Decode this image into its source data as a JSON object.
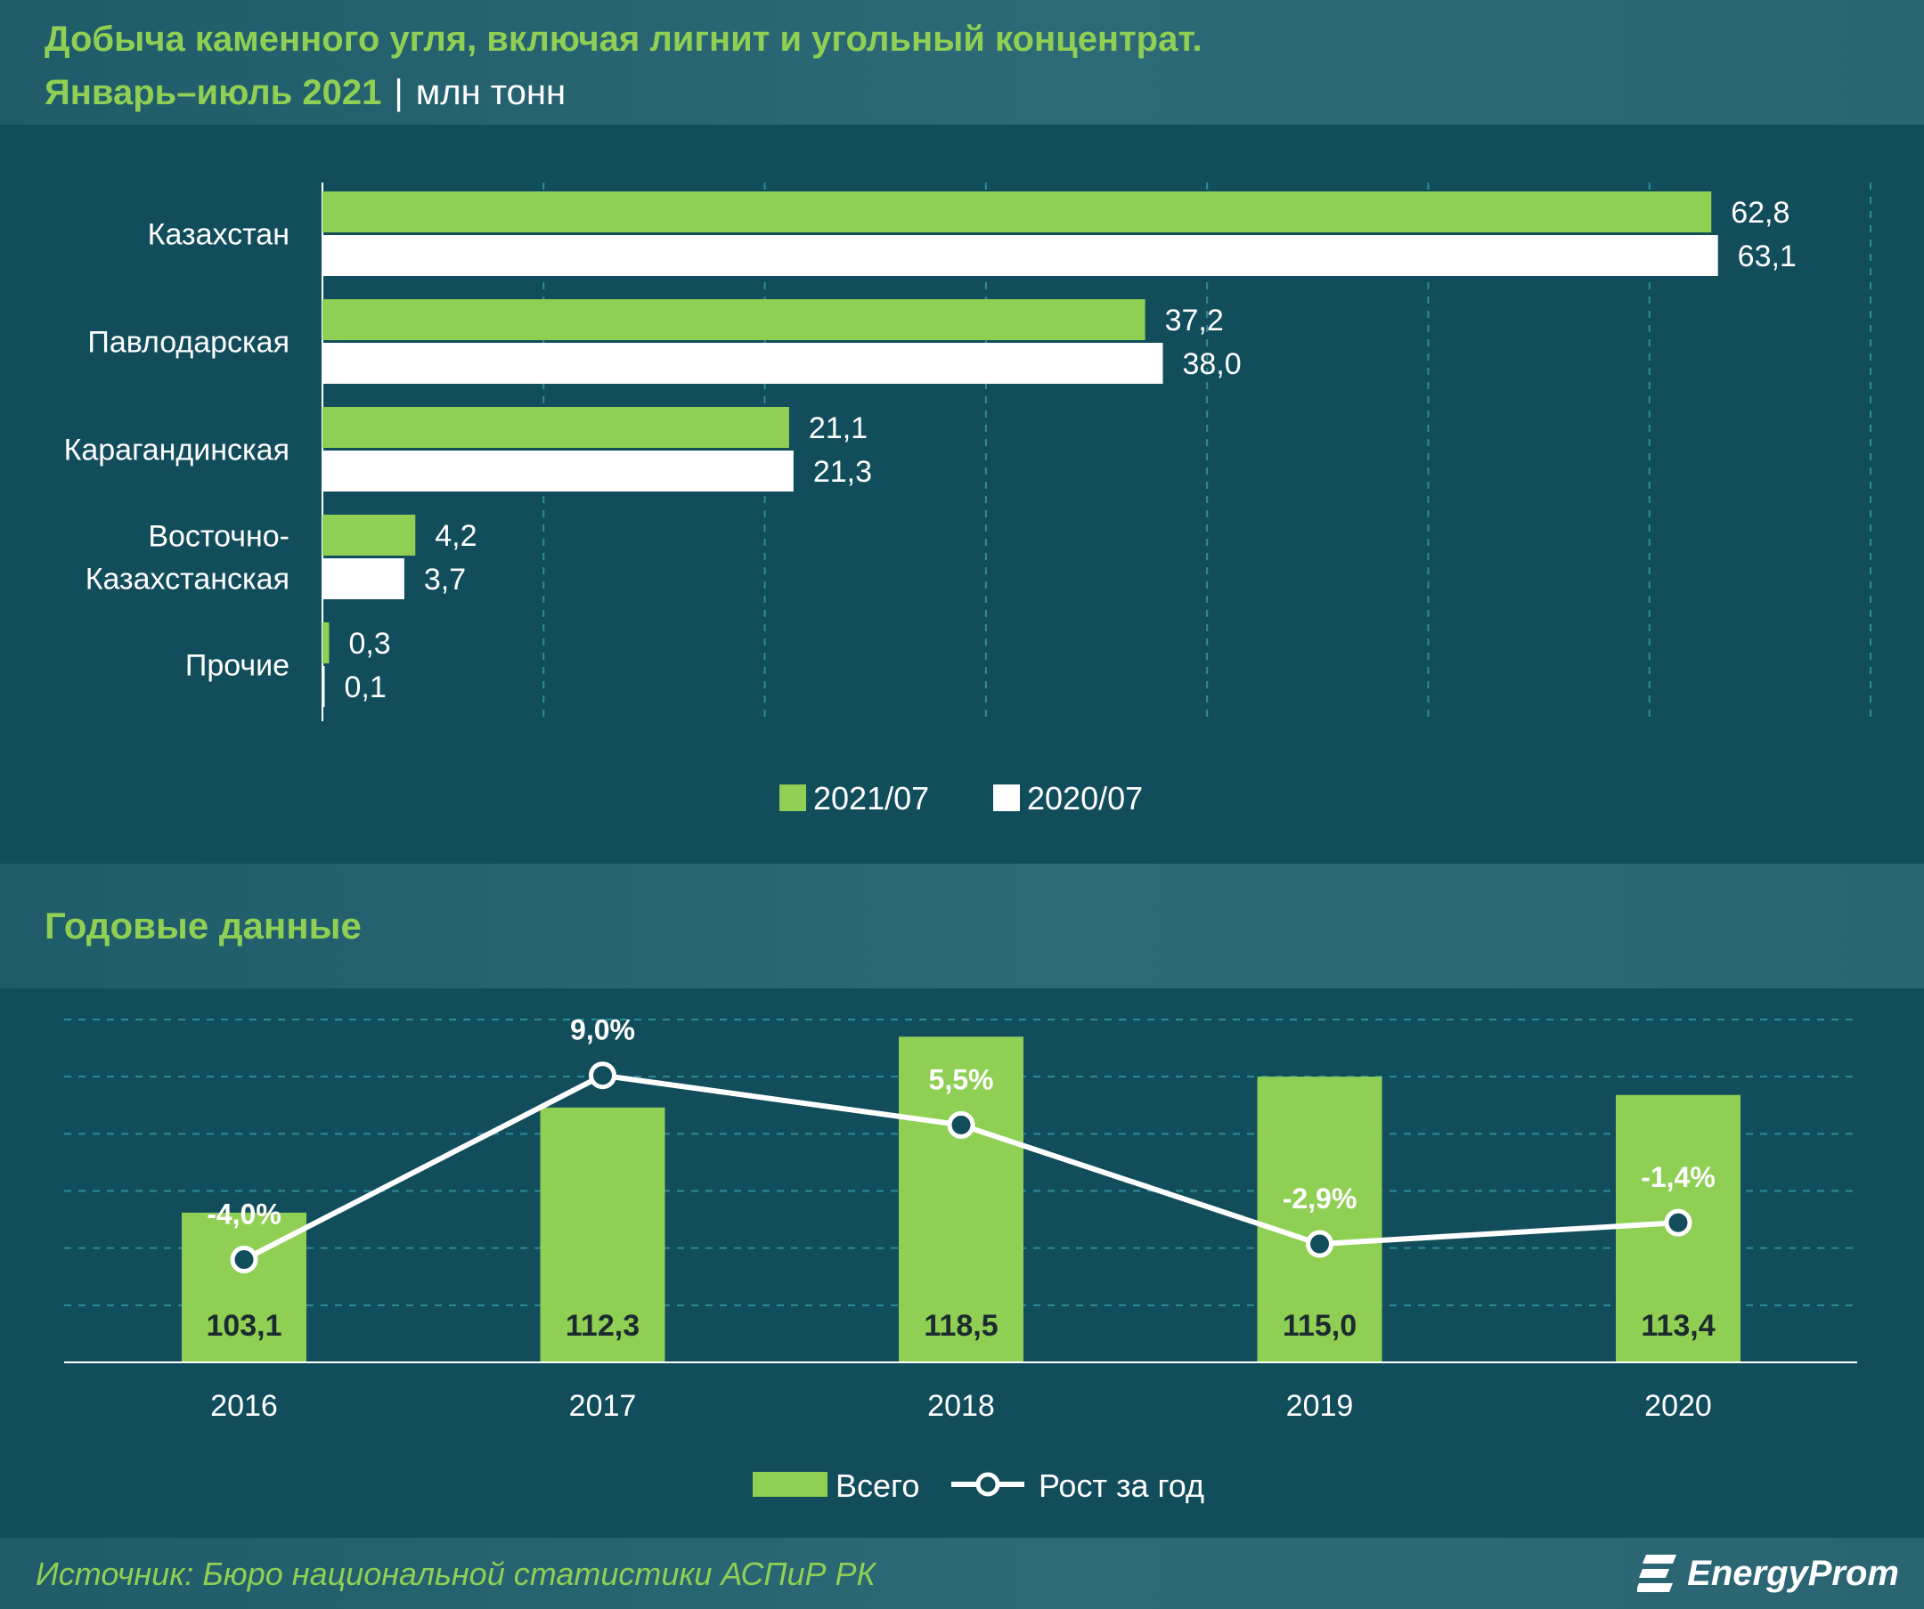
{
  "header": {
    "title": "Добыча каменного угля, включая лигнит и угольный концентрат.",
    "period": "Январь–июль 2021",
    "separator": "|",
    "unit": "млн тонн"
  },
  "section2": {
    "title": "Годовые данные"
  },
  "footer": {
    "source": "Источник: Бюро национальной статистики АСПиР РК",
    "logo_text": "EnergyProm"
  },
  "colors": {
    "background": "#124d5c",
    "green": "#8fcf54",
    "white": "#ffffff",
    "grid": "#2e8b9b"
  },
  "chart_data": [
    {
      "type": "bar",
      "orientation": "horizontal",
      "categories": [
        "Казахстан",
        "Павлодарская",
        "Карагандинская",
        "Восточно-\nКазахстанская",
        "Прочие"
      ],
      "series": [
        {
          "name": "2021/07",
          "values": [
            62.8,
            37.2,
            21.1,
            4.2,
            0.3
          ],
          "labels": [
            "62,8",
            "37,2",
            "21,1",
            "4,2",
            "0,3"
          ],
          "color": "#8fcf54"
        },
        {
          "name": "2020/07",
          "values": [
            63.1,
            38.0,
            21.3,
            3.7,
            0.1
          ],
          "labels": [
            "63,1",
            "38,0",
            "21,3",
            "3,7",
            "0,1"
          ],
          "color": "#ffffff"
        }
      ],
      "xlim": [
        0,
        70
      ],
      "grid": true,
      "legend": "bottom"
    },
    {
      "type": "bar+line",
      "categories": [
        "2016",
        "2017",
        "2018",
        "2019",
        "2020"
      ],
      "series": [
        {
          "name": "Всего",
          "type": "bar",
          "values": [
            103.1,
            112.3,
            118.5,
            115.0,
            113.4
          ],
          "labels": [
            "103,1",
            "112,3",
            "118,5",
            "115,0",
            "113,4"
          ],
          "color": "#8fcf54"
        },
        {
          "name": "Рост за год",
          "type": "line",
          "values": [
            -4.0,
            9.0,
            5.5,
            -2.9,
            -1.4
          ],
          "labels": [
            "-4,0%",
            "9,0%",
            "5,5%",
            "-2,9%",
            "-1,4%"
          ],
          "color": "#ffffff"
        }
      ],
      "bar_ylim": [
        90,
        120
      ],
      "line_ylim": [
        -10,
        12
      ],
      "grid": true,
      "legend": "bottom"
    }
  ]
}
